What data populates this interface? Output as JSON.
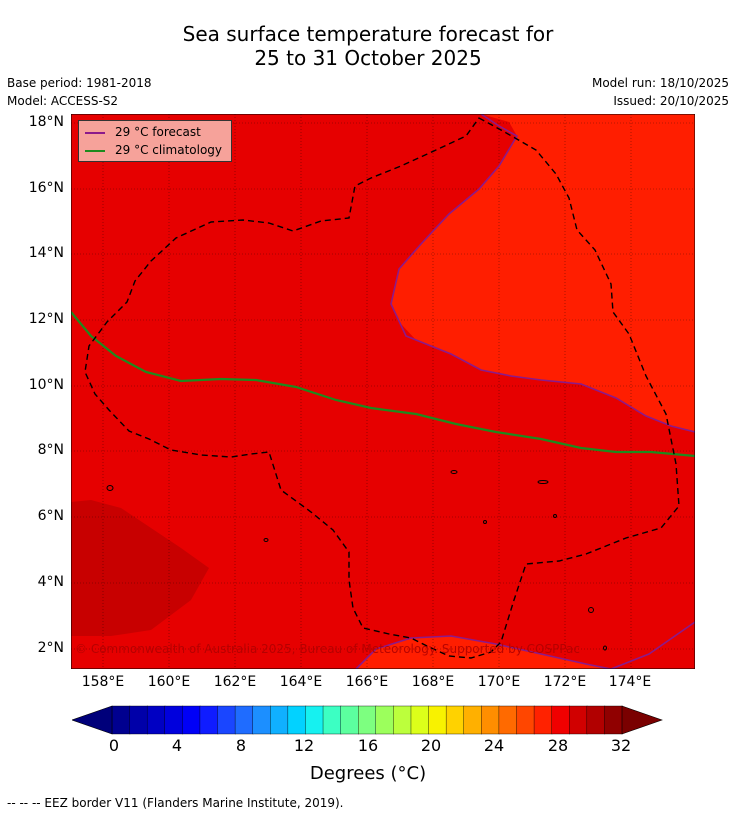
{
  "title_line1": "Sea surface temperature forecast for",
  "title_line2": "25 to 31 October 2025",
  "base_period": "Base period: 1981-2018",
  "model": "Model: ACCESS-S2",
  "model_run": "Model run: 18/10/2025",
  "issued": "Issued: 20/10/2025",
  "legend": {
    "forecast_label": "29 °C  forecast",
    "climatology_label": "29 °C  climatology",
    "forecast_color": "#8b1a8b",
    "climatology_color": "#1e8a1e"
  },
  "lat_labels": [
    "18°N",
    "16°N",
    "14°N",
    "12°N",
    "10°N",
    "8°N",
    "6°N",
    "4°N",
    "2°N"
  ],
  "lon_labels": [
    "158°E",
    "160°E",
    "162°E",
    "164°E",
    "166°E",
    "168°E",
    "170°E",
    "172°E",
    "174°E"
  ],
  "copyright": "© Commonwealth of Australia 2025, Bureau of Meteorology. Supported by COSPPac",
  "colorbar": {
    "tick_labels": [
      "0",
      "4",
      "8",
      "12",
      "16",
      "20",
      "24",
      "28",
      "32"
    ],
    "title": "Degrees (°C)",
    "colors": [
      "#00008f",
      "#0000a9",
      "#0000c3",
      "#0000dd",
      "#0000f7",
      "#0f1cff",
      "#1a46ff",
      "#1f6cff",
      "#1c8fff",
      "#10b0ff",
      "#02d2ff",
      "#16f1f0",
      "#3cffc3",
      "#5cff9f",
      "#7dff80",
      "#9cff5c",
      "#bcff3c",
      "#dcff1a",
      "#f8f200",
      "#ffd200",
      "#ffb000",
      "#ff8e00",
      "#ff6a00",
      "#ff4600",
      "#ff2200",
      "#f00000",
      "#d10000",
      "#b10000",
      "#900000"
    ],
    "under_color": "#00007a",
    "over_color": "#7a0000"
  },
  "map_colors": {
    "base": "#e60000",
    "warm": "#ff1e00",
    "cool_patch": "#c80000"
  },
  "footnote": "-- -- -- EEZ border V11 (Flanders Marine Institute, 2019)."
}
